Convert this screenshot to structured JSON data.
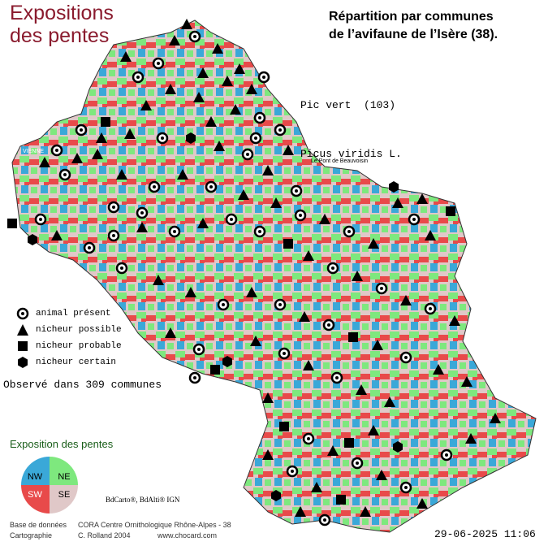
{
  "header": {
    "title_line1": "Expositions",
    "title_line2": "des pentes",
    "subtitle_line1": "Répartition par communes",
    "subtitle_line2": "de l’avifaune de l’Isère (38)."
  },
  "species": {
    "common_name": "Pic vert  (103)",
    "latin_name": "Picus viridis L."
  },
  "legend": {
    "items": [
      {
        "label": "animal présent",
        "symbol": "circle-icon"
      },
      {
        "label": "nicheur possible",
        "symbol": "triangle-icon"
      },
      {
        "label": "nicheur probable",
        "symbol": "square-icon"
      },
      {
        "label": "nicheur certain",
        "symbol": "hexagon-icon"
      }
    ]
  },
  "observed_text": "Observé dans 309 communes",
  "exposure": {
    "title": "Exposition des pentes",
    "quadrants": [
      {
        "label": "NW",
        "color": "#3aa8d8"
      },
      {
        "label": "NE",
        "color": "#7ee87e"
      },
      {
        "label": "SW",
        "color": "#e84a4a"
      },
      {
        "label": "SE",
        "color": "#e0c8c8"
      }
    ]
  },
  "credits": {
    "ign": "BdCarto®, BdAlti® IGN",
    "db_label": "Base de données",
    "db_value": "CORA Centre Ornithologique Rhône-Alpes - 38",
    "carto_label": "Cartographie",
    "carto_value": "C. Rolland 2004",
    "website": "www.chocard.com"
  },
  "date": "29-06-2025 11:06",
  "map_labels": {
    "vienne": "VIENNE",
    "pont_beauvoisin": "Le Pont de Beauvoisin"
  },
  "colors": {
    "title": "#8a1b2e",
    "expo_title": "#1a5e1a",
    "nw": "#3aa8d8",
    "ne": "#7ee87e",
    "sw": "#e84a4a",
    "se": "#e0c8c8"
  }
}
